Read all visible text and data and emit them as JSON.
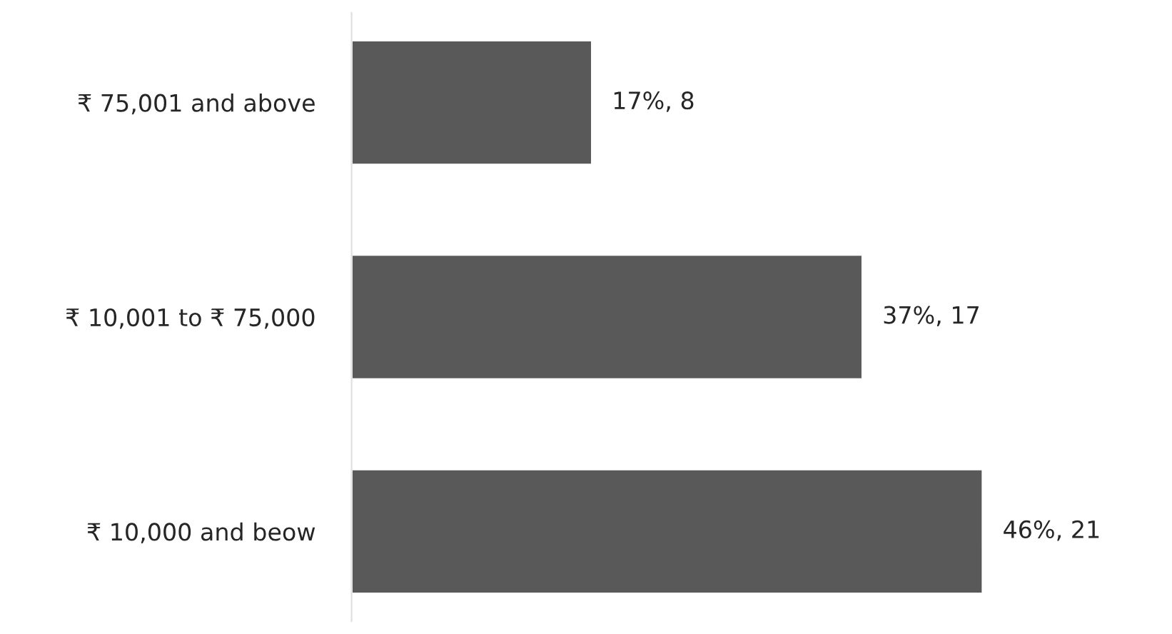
{
  "chart_data": {
    "type": "bar",
    "orientation": "horizontal",
    "categories": [
      "₹ 75,001 and above",
      "₹ 10,001 to ₹ 75,000",
      "₹ 10,000 and beow"
    ],
    "values": [
      8,
      17,
      21
    ],
    "value_labels": [
      "17%, 8",
      "37%, 17",
      "46%, 21"
    ],
    "color": "#595959",
    "grid": false,
    "legend": false
  }
}
